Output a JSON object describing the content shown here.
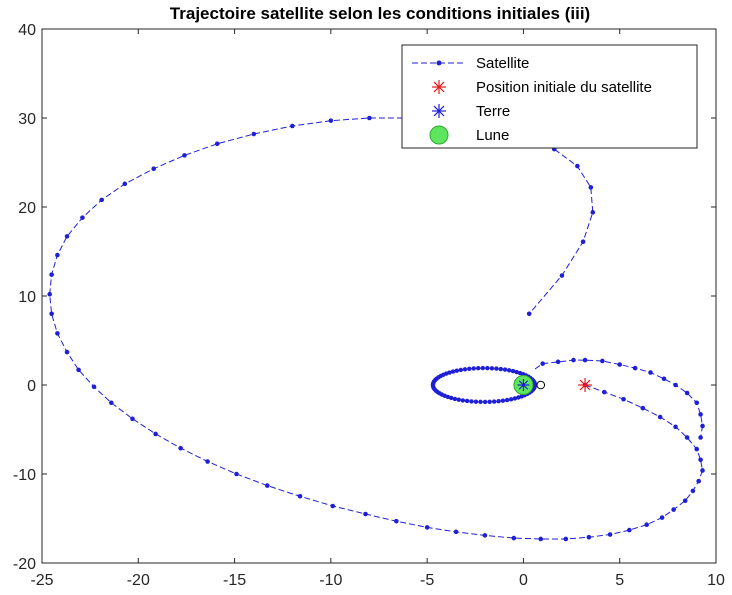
{
  "chart_data": {
    "type": "line",
    "title": "Trajectoire satellite selon les conditions initiales (iii)",
    "xlabel": "",
    "ylabel": "",
    "xlim": [
      -25,
      10
    ],
    "ylim": [
      -20,
      40
    ],
    "xticks": [
      -25,
      -20,
      -15,
      -10,
      -5,
      0,
      5,
      10
    ],
    "yticks": [
      -20,
      -10,
      0,
      10,
      20,
      30,
      40
    ],
    "grid": false,
    "legend_position": "top-right",
    "colors": {
      "satellite": "#1f1fd6",
      "initial": "#e41a1c",
      "earth": "#1f1fd6",
      "moon": "#5de65d",
      "moon_edge": "#2fa82f"
    },
    "series": [
      {
        "name": "Satellite",
        "style": "dashed-dot-markers",
        "x": [
          3.2,
          4.2,
          5.2,
          6.2,
          7.1,
          7.9,
          8.5,
          9.0,
          9.2,
          9.3,
          9.1,
          8.8,
          8.4,
          7.8,
          7.2,
          6.4,
          5.5,
          4.5,
          3.4,
          2.2,
          0.9,
          -0.5,
          -2.0,
          -3.5,
          -5.0,
          -6.6,
          -8.2,
          -9.9,
          -11.6,
          -13.3,
          -14.9,
          -16.4,
          -17.8,
          -19.1,
          -20.3,
          -21.4,
          -22.3,
          -23.1,
          -23.7,
          -24.2,
          -24.5,
          -24.6,
          -24.5,
          -24.2,
          -23.7,
          -22.9,
          -21.9,
          -20.7,
          -19.2,
          -17.6,
          -15.9,
          -14.0,
          -12.0,
          -10.0,
          -8.0,
          -6.0,
          -4.0,
          -2.0,
          0.0,
          1.6,
          2.8,
          3.5,
          3.6,
          3.1,
          2.0,
          0.3
        ],
        "y": [
          0.0,
          -0.8,
          -1.6,
          -2.6,
          -3.6,
          -4.7,
          -5.9,
          -7.2,
          -8.4,
          -9.6,
          -10.8,
          -11.9,
          -13.0,
          -14.0,
          -14.9,
          -15.7,
          -16.3,
          -16.8,
          -17.1,
          -17.3,
          -17.3,
          -17.2,
          -16.9,
          -16.5,
          -16.0,
          -15.3,
          -14.5,
          -13.6,
          -12.5,
          -11.3,
          -10.0,
          -8.6,
          -7.1,
          -5.5,
          -3.8,
          -2.0,
          -0.2,
          1.7,
          3.7,
          5.8,
          8.0,
          10.2,
          12.4,
          14.6,
          16.7,
          18.8,
          20.8,
          22.6,
          24.3,
          25.8,
          27.1,
          28.2,
          29.1,
          29.7,
          30.0,
          30.0,
          29.7,
          29.0,
          27.9,
          26.5,
          24.6,
          22.2,
          19.4,
          16.1,
          12.3,
          8.0
        ]
      },
      {
        "name": "Position initiale du satellite",
        "style": "star-marker",
        "x": [
          3.2
        ],
        "y": [
          0.0
        ]
      },
      {
        "name": "Terre",
        "style": "star-marker",
        "x": [
          0.0
        ],
        "y": [
          0.0
        ]
      },
      {
        "name": "Lune",
        "style": "filled-circle-marker",
        "x": [
          0.0
        ],
        "y": [
          0.0
        ]
      }
    ],
    "extra_markers": [
      {
        "name": "open-circle",
        "x": [
          0.9
        ],
        "y": [
          0.0
        ]
      }
    ]
  }
}
